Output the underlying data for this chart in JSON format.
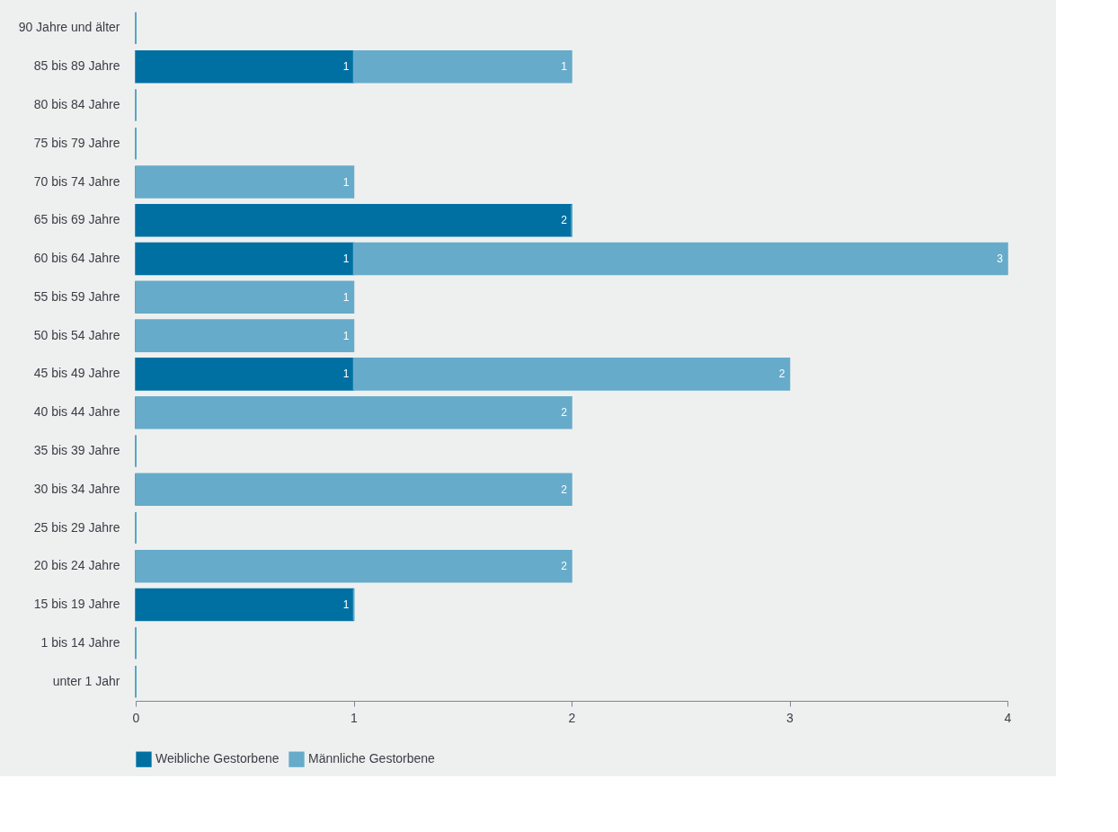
{
  "chart_data": {
    "type": "bar",
    "orientation": "horizontal",
    "stacked": true,
    "categories": [
      "90 Jahre und älter",
      "85 bis 89 Jahre",
      "80 bis 84 Jahre",
      "75 bis 79 Jahre",
      "70 bis 74 Jahre",
      "65 bis 69 Jahre",
      "60 bis 64 Jahre",
      "55 bis 59 Jahre",
      "50 bis 54 Jahre",
      "45 bis 49 Jahre",
      "40 bis 44 Jahre",
      "35 bis 39 Jahre",
      "30 bis 34 Jahre",
      "25 bis 29 Jahre",
      "20 bis 24 Jahre",
      "15 bis 19 Jahre",
      "1 bis 14 Jahre",
      "unter 1 Jahr"
    ],
    "series": [
      {
        "name": "Weibliche Gestorbene",
        "color": "#0070a3",
        "values": [
          0,
          1,
          0,
          0,
          0,
          2,
          1,
          0,
          0,
          1,
          0,
          0,
          0,
          0,
          0,
          1,
          0,
          0
        ],
        "value_labels": [
          null,
          "1",
          null,
          null,
          null,
          "2",
          "1",
          null,
          null,
          "1",
          null,
          null,
          null,
          null,
          null,
          "1",
          null,
          null
        ]
      },
      {
        "name": "Männliche Gestorbene",
        "color": "#67abca",
        "values": [
          0,
          1,
          0,
          0,
          1,
          0,
          3,
          1,
          1,
          2,
          2,
          0,
          2,
          0,
          2,
          0,
          0,
          0
        ],
        "value_labels": [
          null,
          "1",
          null,
          null,
          "1",
          null,
          "3",
          "1",
          "1",
          "2",
          "2",
          null,
          "2",
          null,
          "2",
          null,
          null,
          null
        ]
      }
    ],
    "xlim": [
      0,
      4
    ],
    "xticks": [
      0,
      1,
      2,
      3,
      4
    ],
    "grid": false,
    "legend": "bottom left"
  }
}
